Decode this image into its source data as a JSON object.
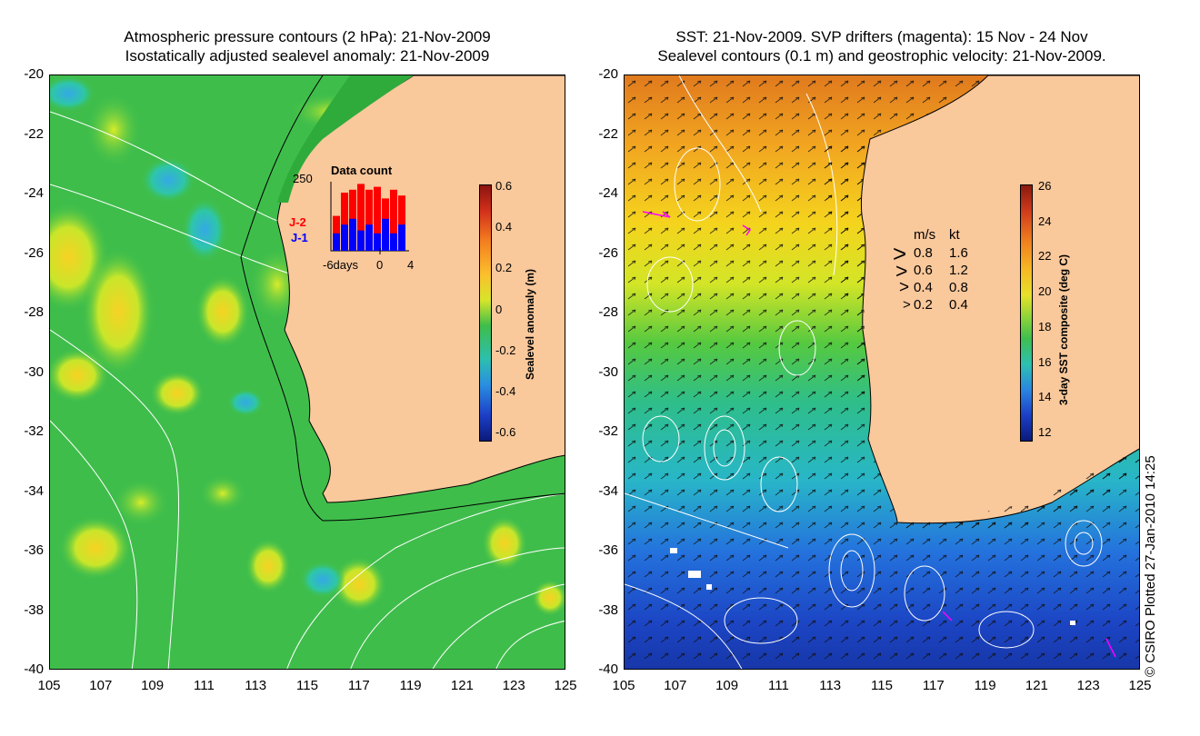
{
  "left_panel": {
    "title_line1": "Atmospheric pressure contours (2 hPa): 21-Nov-2009",
    "title_line2": "Isostatically adjusted sealevel anomaly: 21-Nov-2009",
    "colorbar": {
      "label": "Sealevel anomaly (m)",
      "ticks": [
        "0.6",
        "0.4",
        "0.2",
        "0",
        "-0.2",
        "-0.4",
        "-0.6"
      ],
      "range": [
        -0.6,
        0.6
      ]
    },
    "data_count": {
      "title": "Data count",
      "ymax_label": "250",
      "series_labels": [
        "J-2",
        "J-1"
      ],
      "xtick_labels": [
        "-6days",
        "0",
        "4"
      ],
      "colors": {
        "J-2": "#ff0000",
        "J-1": "#0000ff"
      },
      "bars_j2": [
        120,
        200,
        210,
        230,
        210,
        220,
        180,
        210,
        190
      ],
      "bars_j1": [
        60,
        90,
        110,
        70,
        90,
        60,
        110,
        60,
        90
      ],
      "ymax": 250
    }
  },
  "right_panel": {
    "title_line1": "SST: 21-Nov-2009. SVP drifters (magenta): 15 Nov - 24 Nov",
    "title_line2": "Sealevel contours (0.1 m) and geostrophic velocity: 21-Nov-2009.",
    "colorbar": {
      "label": "3-day SST composite (deg C)",
      "ticks": [
        "26",
        "24",
        "22",
        "20",
        "18",
        "16",
        "14",
        "12"
      ],
      "range": [
        11,
        27
      ]
    },
    "velocity_legend": {
      "headers": [
        "m/s",
        "kt"
      ],
      "rows": [
        [
          "0.8",
          "1.6"
        ],
        [
          "0.6",
          "1.2"
        ],
        [
          "0.4",
          "0.8"
        ],
        [
          "0.2",
          "0.4"
        ]
      ]
    }
  },
  "axes": {
    "lat_ticks": [
      "-20",
      "-22",
      "-24",
      "-26",
      "-28",
      "-30",
      "-32",
      "-34",
      "-36",
      "-38",
      "-40"
    ],
    "lon_ticks": [
      "105",
      "107",
      "109",
      "111",
      "113",
      "115",
      "117",
      "119",
      "121",
      "123",
      "125"
    ],
    "lat_range": [
      -40,
      -20
    ],
    "lon_range": [
      105,
      125
    ]
  },
  "credit": "© CSIRO Plotted 27-Jan-2010 14:25",
  "colors": {
    "land": "#f9c89b",
    "coastline": "#000000",
    "contour": "#ffffff",
    "drifter": "#ff00ff"
  }
}
